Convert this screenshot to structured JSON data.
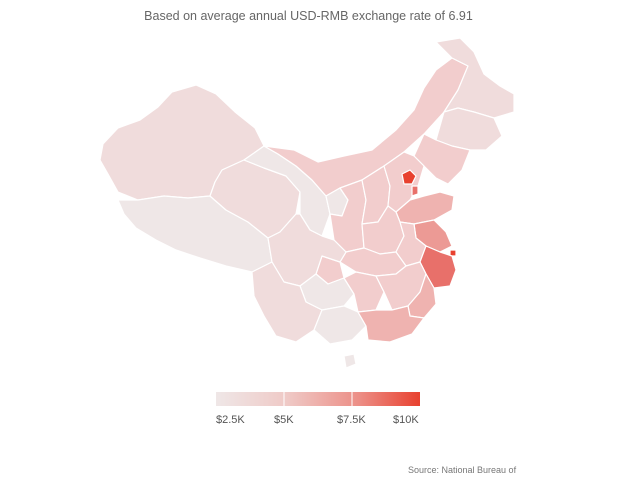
{
  "subtitle": "Based on average annual USD-RMB exchange rate of 6.91",
  "legend": {
    "ticks": [
      "$2.5K",
      "$5K",
      "$7.5K",
      "$10K"
    ],
    "color_low": "#efe7e7",
    "color_high": "#e8412f"
  },
  "source": "Source: National Bureau of",
  "colors": {
    "very_light": "#efe7e7",
    "light": "#f0dcdc",
    "light_mid": "#f2cdcd",
    "mid": "#efb3b0",
    "mid_strong": "#ec9a95",
    "strong": "#e8706a",
    "highest": "#e8412f"
  }
}
